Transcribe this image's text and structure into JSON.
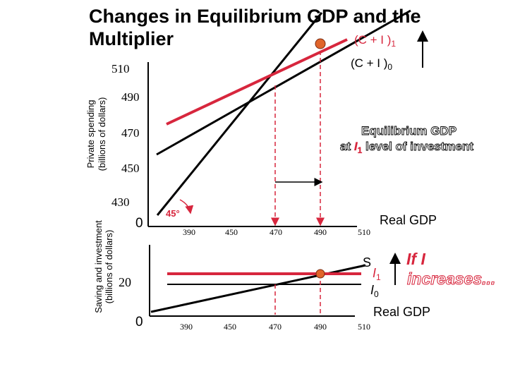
{
  "title_line1": "Changes in Equilibrium GDP and the",
  "title_line2": "Multiplier",
  "colors": {
    "red": "#d7263d",
    "black": "#000000",
    "dot": "#e0652a"
  },
  "top_panel": {
    "y_axis_label_line1": "Private spending",
    "y_axis_label_line2": "(billions of dollars)",
    "y_ticks": [
      "510",
      "490",
      "470",
      "450",
      "430"
    ],
    "origin": "0",
    "x_axis_title": "Real GDP",
    "x_ticks": [
      "390",
      "450",
      "470",
      "490",
      "510"
    ],
    "angle_label": "45°",
    "line_label_1": {
      "main": "(C + I )",
      "sub": "1"
    },
    "line_label_0": {
      "main": "(C + I )",
      "sub": "0"
    },
    "annotation_line1": "Equilibrium GDP",
    "annotation_line2_prefix": "at ",
    "annotation_line2_italic": "I",
    "annotation_line2_sub": "1",
    "annotation_line2_suffix": " level of investment"
  },
  "bottom_panel": {
    "y_axis_label_line1": "Saving and investment",
    "y_axis_label_line2": "(billions of dollars)",
    "y_tick": "20",
    "origin": "0",
    "x_axis_title": "Real GDP",
    "x_ticks": [
      "390",
      "450",
      "470",
      "490",
      "510"
    ],
    "saving_label": "S",
    "i1_label": {
      "main": "I",
      "sub": "1"
    },
    "i0_label": {
      "main": "I",
      "sub": "0"
    },
    "callout_line1": "If  I",
    "callout_line2": "increases..."
  }
}
